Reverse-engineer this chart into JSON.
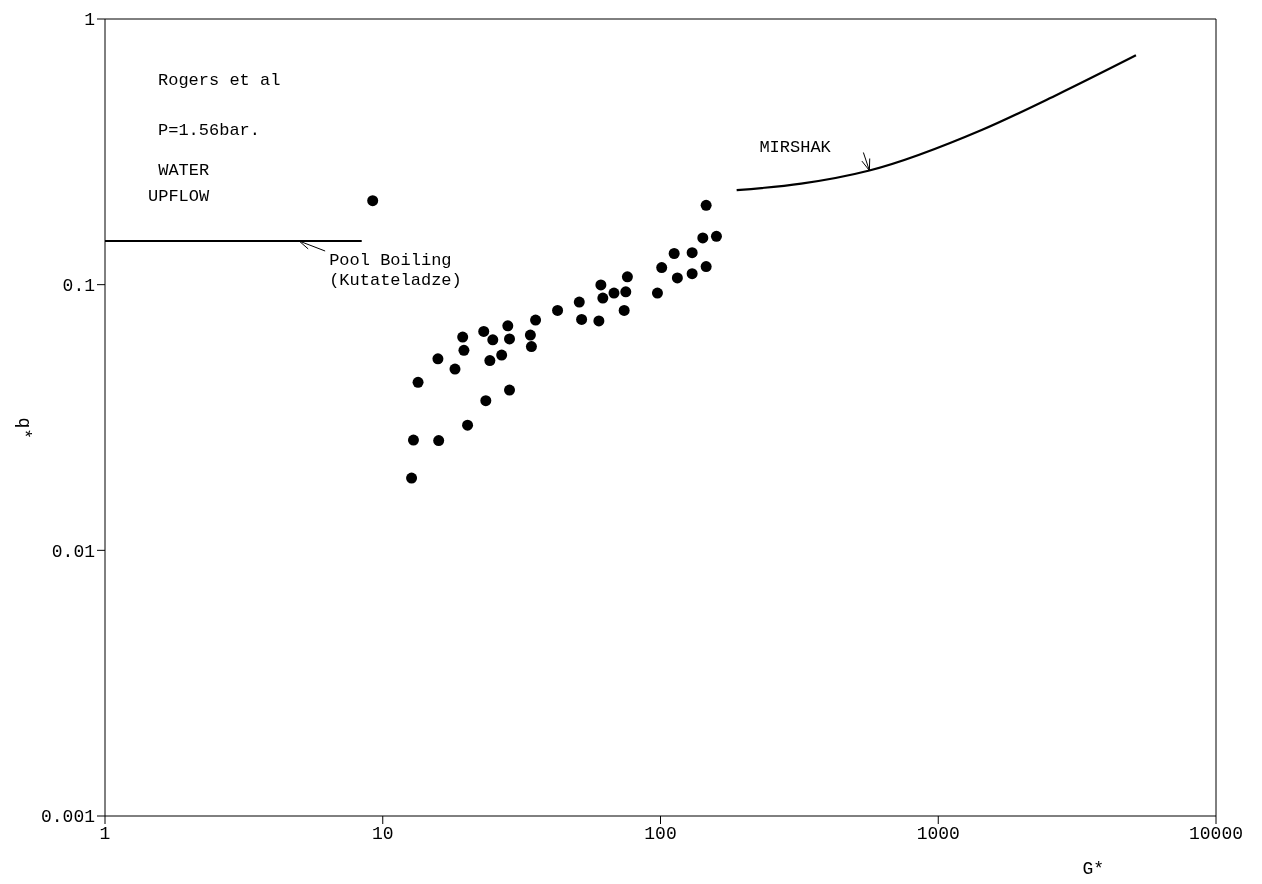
{
  "chart_data": {
    "type": "scatter",
    "xlabel": "G*",
    "ylabel": "q*",
    "log": "xy",
    "xlim": [
      1,
      10000
    ],
    "ylim": [
      0.001,
      1
    ],
    "xticks": [
      1,
      10,
      100,
      1000,
      10000
    ],
    "yticks": [
      0.001,
      0.01,
      0.1,
      1
    ],
    "marker": "circle",
    "series": [
      {
        "color": "#000000",
        "x": [
          9.2,
          146,
          142,
          159,
          112,
          130,
          101,
          115,
          130,
          146,
          76,
          61,
          68,
          75,
          62,
          74,
          97.5,
          51,
          52,
          60,
          42.6,
          35.5,
          34,
          34.3,
          28.2,
          28.6,
          23.1,
          24.9,
          19.4,
          19.6,
          26.8,
          24.3,
          15.8,
          18.2,
          13.4,
          28.6,
          23.5,
          20.2,
          12.9,
          15.9,
          12.7
        ],
        "values": [
          0.207,
          0.199,
          0.15,
          0.152,
          0.131,
          0.132,
          0.116,
          0.106,
          0.11,
          0.117,
          0.107,
          0.0998,
          0.093,
          0.094,
          0.089,
          0.08,
          0.093,
          0.086,
          0.074,
          0.073,
          0.08,
          0.0736,
          0.0646,
          0.0585,
          0.07,
          0.0625,
          0.0667,
          0.062,
          0.0635,
          0.0566,
          0.0543,
          0.0518,
          0.0526,
          0.0481,
          0.0429,
          0.0401,
          0.0366,
          0.0296,
          0.026,
          0.0259,
          0.0187
        ]
      },
      {
        "type": "line",
        "color": "#000000",
        "marker": "none",
        "x": [
          1,
          8.4
        ],
        "values": [
          0.146,
          0.146
        ]
      },
      {
        "type": "line",
        "color": "#000000",
        "marker": "none",
        "x": [
          188,
          321,
          565,
          1440,
          2680,
          5150
        ],
        "values": [
          0.227,
          0.24,
          0.269,
          0.383,
          0.519,
          0.73
        ]
      }
    ],
    "annotations": [
      "Rogers et al",
      "P=1.56bar.",
      "WATER\nUPFLOW",
      {
        "text": "Pool Boiling\n(Kutateladze)",
        "x": 5,
        "y": 0.146
      },
      {
        "text": "MIRSHAK",
        "x": 565,
        "y": 0.269
      }
    ]
  }
}
